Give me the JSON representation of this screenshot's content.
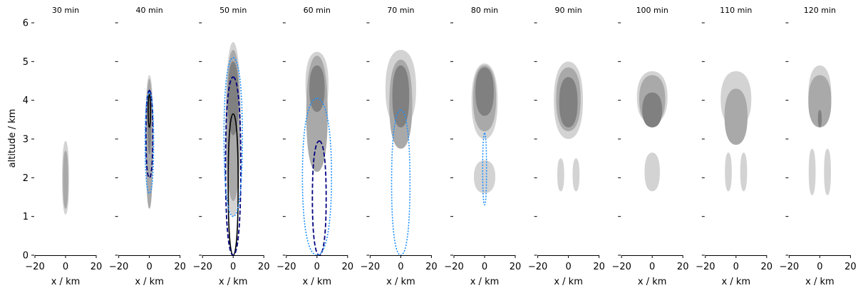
{
  "chart_data": {
    "type": "contour-panels",
    "ylabel": "altitude / km",
    "xlabel": "x / km",
    "xlim": [
      -20,
      20
    ],
    "ylim": [
      0,
      6
    ],
    "xticks": [
      -20,
      0,
      20
    ],
    "yticks": [
      0,
      1,
      2,
      3,
      4,
      5,
      6
    ],
    "fill_levels_color": [
      "#d3d3d3",
      "#a9a9a9",
      "#808080"
    ],
    "line_colors": {
      "black": "#000000",
      "navy_dashed": "#000080",
      "blue_dotted": "#1e90ff"
    },
    "panels": [
      {
        "title": "30 min",
        "fills": [
          {
            "level": 0,
            "cx": 0,
            "ymin": 1.05,
            "ymax": 2.95,
            "w": 4.5
          },
          {
            "level": 1,
            "cx": 0,
            "ymin": 1.2,
            "ymax": 2.7,
            "w": 3.5
          }
        ],
        "lines": []
      },
      {
        "title": "40 min",
        "fills": [
          {
            "level": 0,
            "cx": 0,
            "ymin": 1.55,
            "ymax": 4.65,
            "w": 5
          },
          {
            "level": 1,
            "cx": 0,
            "ymin": 1.2,
            "ymax": 4.55,
            "w": 4.5
          },
          {
            "level": 2,
            "cx": 0,
            "ymin": 2.6,
            "ymax": 4.3,
            "w": 2.2
          }
        ],
        "lines": [
          {
            "style": "black",
            "cx": 0,
            "ymin": 3.3,
            "ymax": 4.15,
            "w": 1.6
          },
          {
            "style": "navy_dashed",
            "cx": 0,
            "ymin": 2.0,
            "ymax": 4.25,
            "w": 4.5
          },
          {
            "style": "blue_dotted",
            "cx": 0,
            "ymin": 1.6,
            "ymax": 4.2,
            "w": 5.5
          }
        ]
      },
      {
        "title": "50 min",
        "fills": [
          {
            "level": 0,
            "cx": 0,
            "ymin": 1.0,
            "ymax": 5.5,
            "w": 10
          },
          {
            "level": 1,
            "cx": 0,
            "ymin": 1.4,
            "ymax": 5.3,
            "w": 9
          },
          {
            "level": 2,
            "cx": 0,
            "ymin": 3.1,
            "ymax": 5.0,
            "w": 7
          }
        ],
        "lines": [
          {
            "style": "black",
            "cx": 0,
            "ymin": 0,
            "ymax": 3.65,
            "w": 6.5
          },
          {
            "style": "navy_dashed",
            "cx": 0,
            "ymin": 0,
            "ymax": 4.6,
            "w": 10
          },
          {
            "style": "blue_dotted",
            "cx": 0,
            "ymin": 1.0,
            "ymax": 5.1,
            "w": 12
          }
        ]
      },
      {
        "title": "60 min",
        "fills": [
          {
            "level": 0,
            "cx": 0,
            "ymin": 3.6,
            "ymax": 5.25,
            "w": 15
          },
          {
            "level": 1,
            "cx": 0,
            "ymin": 2.15,
            "ymax": 5.15,
            "w": 14
          },
          {
            "level": 2,
            "cx": 0,
            "ymin": 3.7,
            "ymax": 4.9,
            "w": 10
          }
        ],
        "lines": [
          {
            "style": "navy_dashed",
            "cx": 1.5,
            "ymin": 0,
            "ymax": 2.95,
            "w": 9
          },
          {
            "style": "blue_dotted",
            "cx": 0,
            "ymin": 0,
            "ymax": 4.05,
            "w": 19
          }
        ]
      },
      {
        "title": "70 min",
        "fills": [
          {
            "level": 0,
            "cx": 0,
            "ymin": 3.3,
            "ymax": 5.3,
            "w": 20
          },
          {
            "level": 1,
            "cx": 0,
            "ymin": 2.75,
            "ymax": 5.05,
            "w": 15
          },
          {
            "level": 2,
            "cx": 0,
            "ymin": 3.3,
            "ymax": 4.9,
            "w": 11
          }
        ],
        "lines": [
          {
            "style": "blue_dotted",
            "cx": 0,
            "ymin": 0,
            "ymax": 3.75,
            "w": 12
          }
        ]
      },
      {
        "title": "80 min",
        "fills": [
          {
            "level": 0,
            "cx": 0,
            "ymin": 3.0,
            "ymax": 4.95,
            "w": 17
          },
          {
            "level": 0,
            "cx": 0,
            "ymin": 1.6,
            "ymax": 2.45,
            "w": 14
          },
          {
            "level": 1,
            "cx": 0,
            "ymin": 3.2,
            "ymax": 4.9,
            "w": 15
          },
          {
            "level": 2,
            "cx": 0,
            "ymin": 3.6,
            "ymax": 4.85,
            "w": 12
          }
        ],
        "lines": [
          {
            "style": "blue_dotted",
            "cx": 0,
            "ymin": 1.3,
            "ymax": 3.15,
            "w": 2.5
          }
        ]
      },
      {
        "title": "90 min",
        "fills": [
          {
            "level": 0,
            "cx": 0,
            "ymin": 3.0,
            "ymax": 5.0,
            "w": 19
          },
          {
            "level": 0,
            "cx": -5,
            "ymin": 1.65,
            "ymax": 2.5,
            "w": 4.5
          },
          {
            "level": 0,
            "cx": 5,
            "ymin": 1.65,
            "ymax": 2.5,
            "w": 4.5
          },
          {
            "level": 1,
            "cx": 0,
            "ymin": 3.2,
            "ymax": 4.85,
            "w": 16
          },
          {
            "level": 2,
            "cx": 0,
            "ymin": 3.3,
            "ymax": 4.6,
            "w": 12
          }
        ],
        "lines": []
      },
      {
        "title": "100 min",
        "fills": [
          {
            "level": 0,
            "cx": 0,
            "ymin": 3.4,
            "ymax": 4.75,
            "w": 20
          },
          {
            "level": 0,
            "cx": 0,
            "ymin": 1.65,
            "ymax": 2.65,
            "w": 10
          },
          {
            "level": 1,
            "cx": 0,
            "ymin": 3.4,
            "ymax": 4.65,
            "w": 17
          },
          {
            "level": 2,
            "cx": 0,
            "ymin": 3.3,
            "ymax": 4.2,
            "w": 13
          }
        ],
        "lines": []
      },
      {
        "title": "110 min",
        "fills": [
          {
            "level": 0,
            "cx": 0,
            "ymin": 3.3,
            "ymax": 4.75,
            "w": 20
          },
          {
            "level": 0,
            "cx": -5,
            "ymin": 1.65,
            "ymax": 2.65,
            "w": 4.5
          },
          {
            "level": 0,
            "cx": 5,
            "ymin": 1.65,
            "ymax": 2.65,
            "w": 4.5
          },
          {
            "level": 1,
            "cx": 0,
            "ymin": 2.85,
            "ymax": 4.3,
            "w": 15
          }
        ],
        "lines": []
      },
      {
        "title": "120 min",
        "fills": [
          {
            "level": 0,
            "cx": 0,
            "ymin": 3.35,
            "ymax": 4.9,
            "w": 15
          },
          {
            "level": 0,
            "cx": -5,
            "ymin": 1.55,
            "ymax": 2.75,
            "w": 4.5
          },
          {
            "level": 0,
            "cx": 5,
            "ymin": 1.55,
            "ymax": 2.75,
            "w": 4.5
          },
          {
            "level": 1,
            "cx": 0,
            "ymin": 3.3,
            "ymax": 4.65,
            "w": 15
          },
          {
            "level": 2,
            "cx": 0,
            "ymin": 3.3,
            "ymax": 3.75,
            "w": 2.5
          }
        ],
        "lines": []
      }
    ]
  }
}
